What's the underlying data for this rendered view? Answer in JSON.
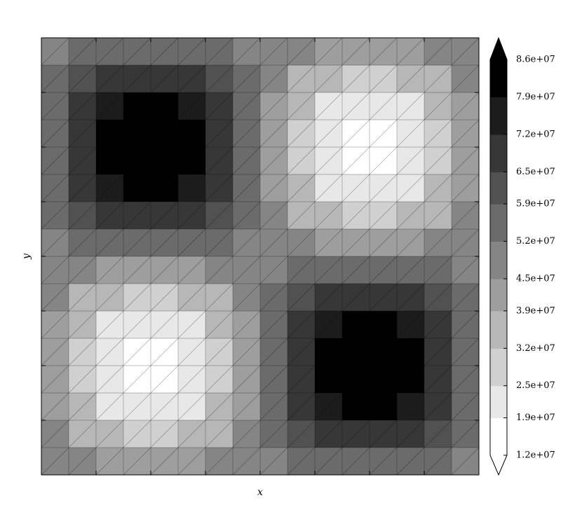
{
  "chart_data": {
    "type": "contourf",
    "x_label": "x",
    "y_label": "y",
    "z": [
      [
        50000000.0,
        53000000.0,
        55000000.0,
        56000000.0,
        56000000.0,
        55000000.0,
        53000000.0,
        50000000.0,
        48000000.0,
        45000000.0,
        43000000.0,
        42000000.0,
        42000000.0,
        43000000.0,
        45000000.0,
        48000000.0
      ],
      [
        53000000.0,
        60000000.0,
        66000000.0,
        69000000.0,
        69000000.0,
        66000000.0,
        60000000.0,
        53000000.0,
        45000000.0,
        38000000.0,
        32000000.0,
        29000000.0,
        29000000.0,
        32000000.0,
        38000000.0,
        45000000.0
      ],
      [
        55000000.0,
        66000000.0,
        75000000.0,
        79000000.0,
        79000000.0,
        75000000.0,
        66000000.0,
        55000000.0,
        43000000.0,
        32000000.0,
        23000000.0,
        19000000.0,
        19000000.0,
        23000000.0,
        32000000.0,
        43000000.0
      ],
      [
        56000000.0,
        69000000.0,
        79000000.0,
        85000000.0,
        85000000.0,
        79000000.0,
        69000000.0,
        56000000.0,
        42000000.0,
        29000000.0,
        19000000.0,
        13000000.0,
        13000000.0,
        19000000.0,
        29000000.0,
        42000000.0
      ],
      [
        56000000.0,
        69000000.0,
        79000000.0,
        85000000.0,
        85000000.0,
        79000000.0,
        69000000.0,
        56000000.0,
        42000000.0,
        29000000.0,
        19000000.0,
        13000000.0,
        13000000.0,
        19000000.0,
        29000000.0,
        42000000.0
      ],
      [
        55000000.0,
        66000000.0,
        75000000.0,
        79000000.0,
        79000000.0,
        75000000.0,
        66000000.0,
        55000000.0,
        43000000.0,
        32000000.0,
        23000000.0,
        19000000.0,
        19000000.0,
        23000000.0,
        32000000.0,
        43000000.0
      ],
      [
        53000000.0,
        60000000.0,
        66000000.0,
        69000000.0,
        69000000.0,
        66000000.0,
        60000000.0,
        53000000.0,
        45000000.0,
        38000000.0,
        32000000.0,
        29000000.0,
        29000000.0,
        32000000.0,
        38000000.0,
        45000000.0
      ],
      [
        50000000.0,
        53000000.0,
        55000000.0,
        56000000.0,
        56000000.0,
        55000000.0,
        53000000.0,
        50000000.0,
        48000000.0,
        45000000.0,
        43000000.0,
        42000000.0,
        42000000.0,
        43000000.0,
        45000000.0,
        48000000.0
      ],
      [
        48000000.0,
        45000000.0,
        43000000.0,
        42000000.0,
        42000000.0,
        43000000.0,
        45000000.0,
        48000000.0,
        50000000.0,
        53000000.0,
        55000000.0,
        56000000.0,
        56000000.0,
        55000000.0,
        53000000.0,
        50000000.0
      ],
      [
        45000000.0,
        38000000.0,
        32000000.0,
        29000000.0,
        29000000.0,
        32000000.0,
        38000000.0,
        45000000.0,
        53000000.0,
        60000000.0,
        66000000.0,
        69000000.0,
        69000000.0,
        66000000.0,
        60000000.0,
        53000000.0
      ],
      [
        43000000.0,
        32000000.0,
        23000000.0,
        19000000.0,
        19000000.0,
        23000000.0,
        32000000.0,
        43000000.0,
        55000000.0,
        66000000.0,
        75000000.0,
        79000000.0,
        79000000.0,
        75000000.0,
        66000000.0,
        55000000.0
      ],
      [
        42000000.0,
        29000000.0,
        19000000.0,
        13000000.0,
        13000000.0,
        19000000.0,
        29000000.0,
        42000000.0,
        56000000.0,
        69000000.0,
        79000000.0,
        85000000.0,
        85000000.0,
        79000000.0,
        69000000.0,
        56000000.0
      ],
      [
        42000000.0,
        29000000.0,
        19000000.0,
        13000000.0,
        13000000.0,
        19000000.0,
        29000000.0,
        42000000.0,
        56000000.0,
        69000000.0,
        79000000.0,
        85000000.0,
        85000000.0,
        79000000.0,
        69000000.0,
        56000000.0
      ],
      [
        43000000.0,
        32000000.0,
        23000000.0,
        19000000.0,
        19000000.0,
        23000000.0,
        32000000.0,
        43000000.0,
        55000000.0,
        66000000.0,
        75000000.0,
        79000000.0,
        79000000.0,
        75000000.0,
        66000000.0,
        55000000.0
      ],
      [
        45000000.0,
        38000000.0,
        32000000.0,
        29000000.0,
        29000000.0,
        32000000.0,
        38000000.0,
        45000000.0,
        53000000.0,
        60000000.0,
        66000000.0,
        69000000.0,
        69000000.0,
        66000000.0,
        60000000.0,
        53000000.0
      ],
      [
        48000000.0,
        45000000.0,
        43000000.0,
        42000000.0,
        42000000.0,
        43000000.0,
        45000000.0,
        48000000.0,
        50000000.0,
        53000000.0,
        55000000.0,
        56000000.0,
        56000000.0,
        55000000.0,
        53000000.0,
        50000000.0
      ]
    ],
    "colorbar": {
      "ticks": [
        {
          "value": 12000000,
          "label": "1.2e+07"
        },
        {
          "value": 19000000,
          "label": "1.9e+07"
        },
        {
          "value": 25000000,
          "label": "2.5e+07"
        },
        {
          "value": 32000000,
          "label": "3.2e+07"
        },
        {
          "value": 39000000,
          "label": "3.9e+07"
        },
        {
          "value": 45000000,
          "label": "4.5e+07"
        },
        {
          "value": 52000000,
          "label": "5.2e+07"
        },
        {
          "value": 59000000,
          "label": "5.9e+07"
        },
        {
          "value": 65000000,
          "label": "6.5e+07"
        },
        {
          "value": 72000000,
          "label": "7.2e+07"
        },
        {
          "value": 79000000,
          "label": "7.9e+07"
        },
        {
          "value": 86000000,
          "label": "8.6e+07"
        }
      ],
      "colors": [
        "#ffffff",
        "#e8e8e8",
        "#d0d0d0",
        "#b7b7b7",
        "#9e9e9e",
        "#858585",
        "#6b6b6b",
        "#515151",
        "#373737",
        "#1c1c1c",
        "#000000"
      ],
      "extend": "both"
    }
  }
}
